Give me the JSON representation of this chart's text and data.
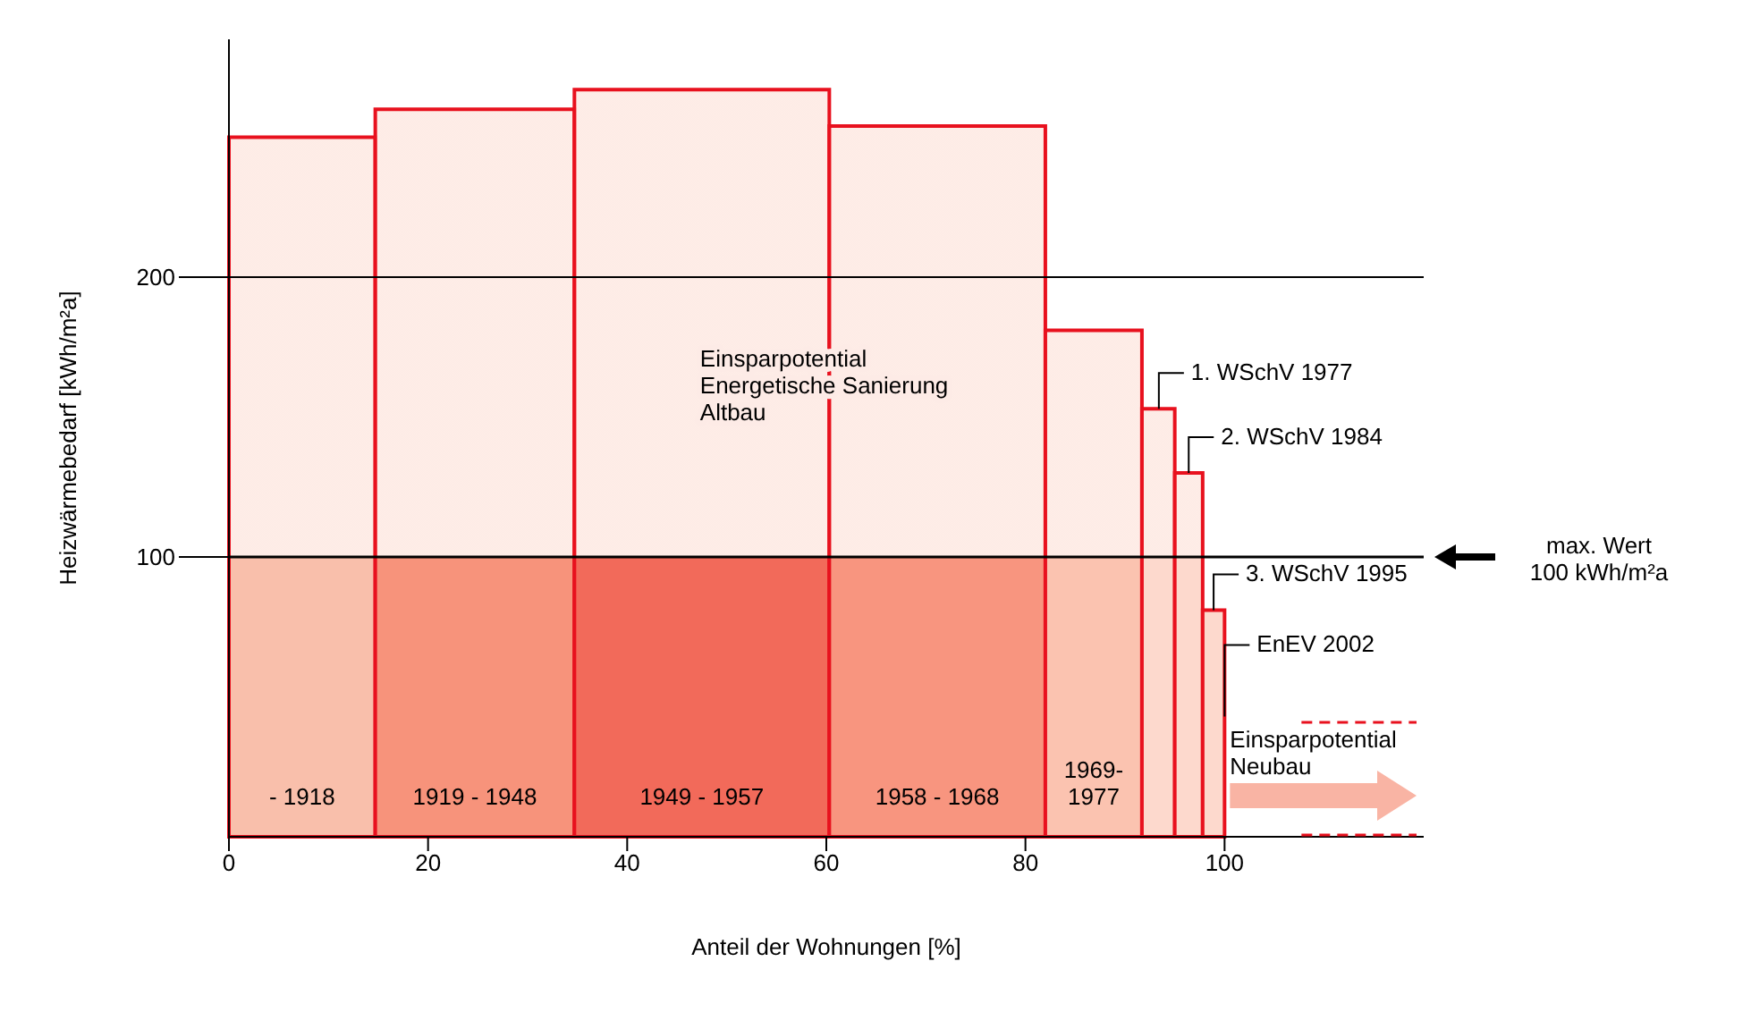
{
  "chart_data": {
    "type": "histogram",
    "xlabel": "Anteil der Wohnungen [%]",
    "ylabel": "Heizwärmebedarf [kWh/m²a]",
    "bins": [
      0,
      14.7,
      34.7,
      60.3,
      82,
      91.7,
      95,
      97.8,
      100
    ],
    "values": [
      250,
      260,
      267,
      254,
      181,
      153,
      130,
      81
    ],
    "categories": [
      "- 1918",
      "1919 - 1948",
      "1949 - 1957",
      "1958 - 1968",
      "1969-1977",
      null,
      null,
      null
    ],
    "colors": [
      "#f9bfab",
      "#f7937b",
      "#f26a5a",
      "#f8957f",
      "#fbc3b0",
      "#fdd9cd",
      "#fdd9cd",
      "#fdd9cd"
    ],
    "xlim": [
      0,
      120
    ],
    "xticks": [
      0,
      20,
      40,
      60,
      80,
      100
    ],
    "ylim": [
      0,
      285
    ],
    "yticks": [
      100,
      200
    ],
    "ref_lines": [
      {
        "axis": "y",
        "value": 100,
        "label": "max. Wert\n100 kWh/m²a"
      },
      {
        "axis": "y",
        "value": 200
      }
    ],
    "annotations": [
      "Einsparpotential\nEnergetische Sanierung\nAltbau",
      "Einsparpotential\nNeubau",
      {
        "text": "1. WSchV 1977",
        "x": 93.4,
        "y": 153
      },
      {
        "text": "2. WSchV 1984",
        "x": 96.4,
        "y": 130
      },
      {
        "text": "3. WSchV 1995",
        "x": 98.9,
        "y": 81
      },
      {
        "text": "EnEV 2002",
        "x": 100,
        "y": 43
      }
    ]
  }
}
